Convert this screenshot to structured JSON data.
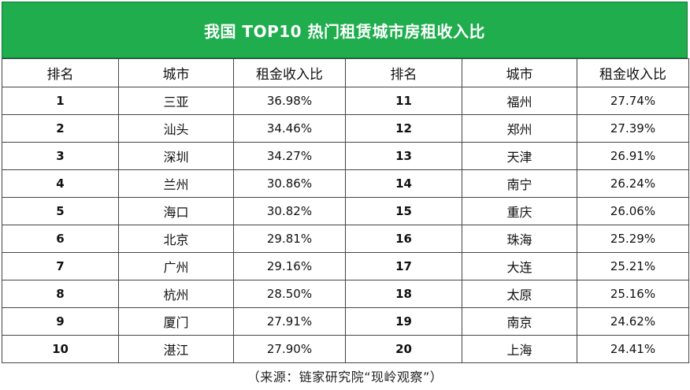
{
  "title": "我国 TOP10 热门租赁城市房租收入比",
  "headers": {
    "rank": "排名",
    "city": "城市",
    "ratio": "租金收入比"
  },
  "rows": [
    {
      "left": {
        "rank": "1",
        "city": "三亚",
        "ratio": "36.98%"
      },
      "right": {
        "rank": "11",
        "city": "福州",
        "ratio": "27.74%"
      }
    },
    {
      "left": {
        "rank": "2",
        "city": "汕头",
        "ratio": "34.46%"
      },
      "right": {
        "rank": "12",
        "city": "郑州",
        "ratio": "27.39%"
      }
    },
    {
      "left": {
        "rank": "3",
        "city": "深圳",
        "ratio": "34.27%"
      },
      "right": {
        "rank": "13",
        "city": "天津",
        "ratio": "26.91%"
      }
    },
    {
      "left": {
        "rank": "4",
        "city": "兰州",
        "ratio": "30.86%"
      },
      "right": {
        "rank": "14",
        "city": "南宁",
        "ratio": "26.24%"
      }
    },
    {
      "left": {
        "rank": "5",
        "city": "海口",
        "ratio": "30.82%"
      },
      "right": {
        "rank": "15",
        "city": "重庆",
        "ratio": "26.06%"
      }
    },
    {
      "left": {
        "rank": "6",
        "city": "北京",
        "ratio": "29.81%"
      },
      "right": {
        "rank": "16",
        "city": "珠海",
        "ratio": "25.29%"
      }
    },
    {
      "left": {
        "rank": "7",
        "city": "广州",
        "ratio": "29.16%"
      },
      "right": {
        "rank": "17",
        "city": "大连",
        "ratio": "25.21%"
      }
    },
    {
      "left": {
        "rank": "8",
        "city": "杭州",
        "ratio": "28.50%"
      },
      "right": {
        "rank": "18",
        "city": "太原",
        "ratio": "25.16%"
      }
    },
    {
      "left": {
        "rank": "9",
        "city": "厦门",
        "ratio": "27.91%"
      },
      "right": {
        "rank": "19",
        "city": "南京",
        "ratio": "24.62%"
      }
    },
    {
      "left": {
        "rank": "10",
        "city": "湛江",
        "ratio": "27.90%"
      },
      "right": {
        "rank": "20",
        "city": "上海",
        "ratio": "24.41%"
      }
    }
  ],
  "source": "（来源：链家研究院“现岭观察”）",
  "colors": {
    "banner": "#1fad4e",
    "border": "#444444"
  }
}
